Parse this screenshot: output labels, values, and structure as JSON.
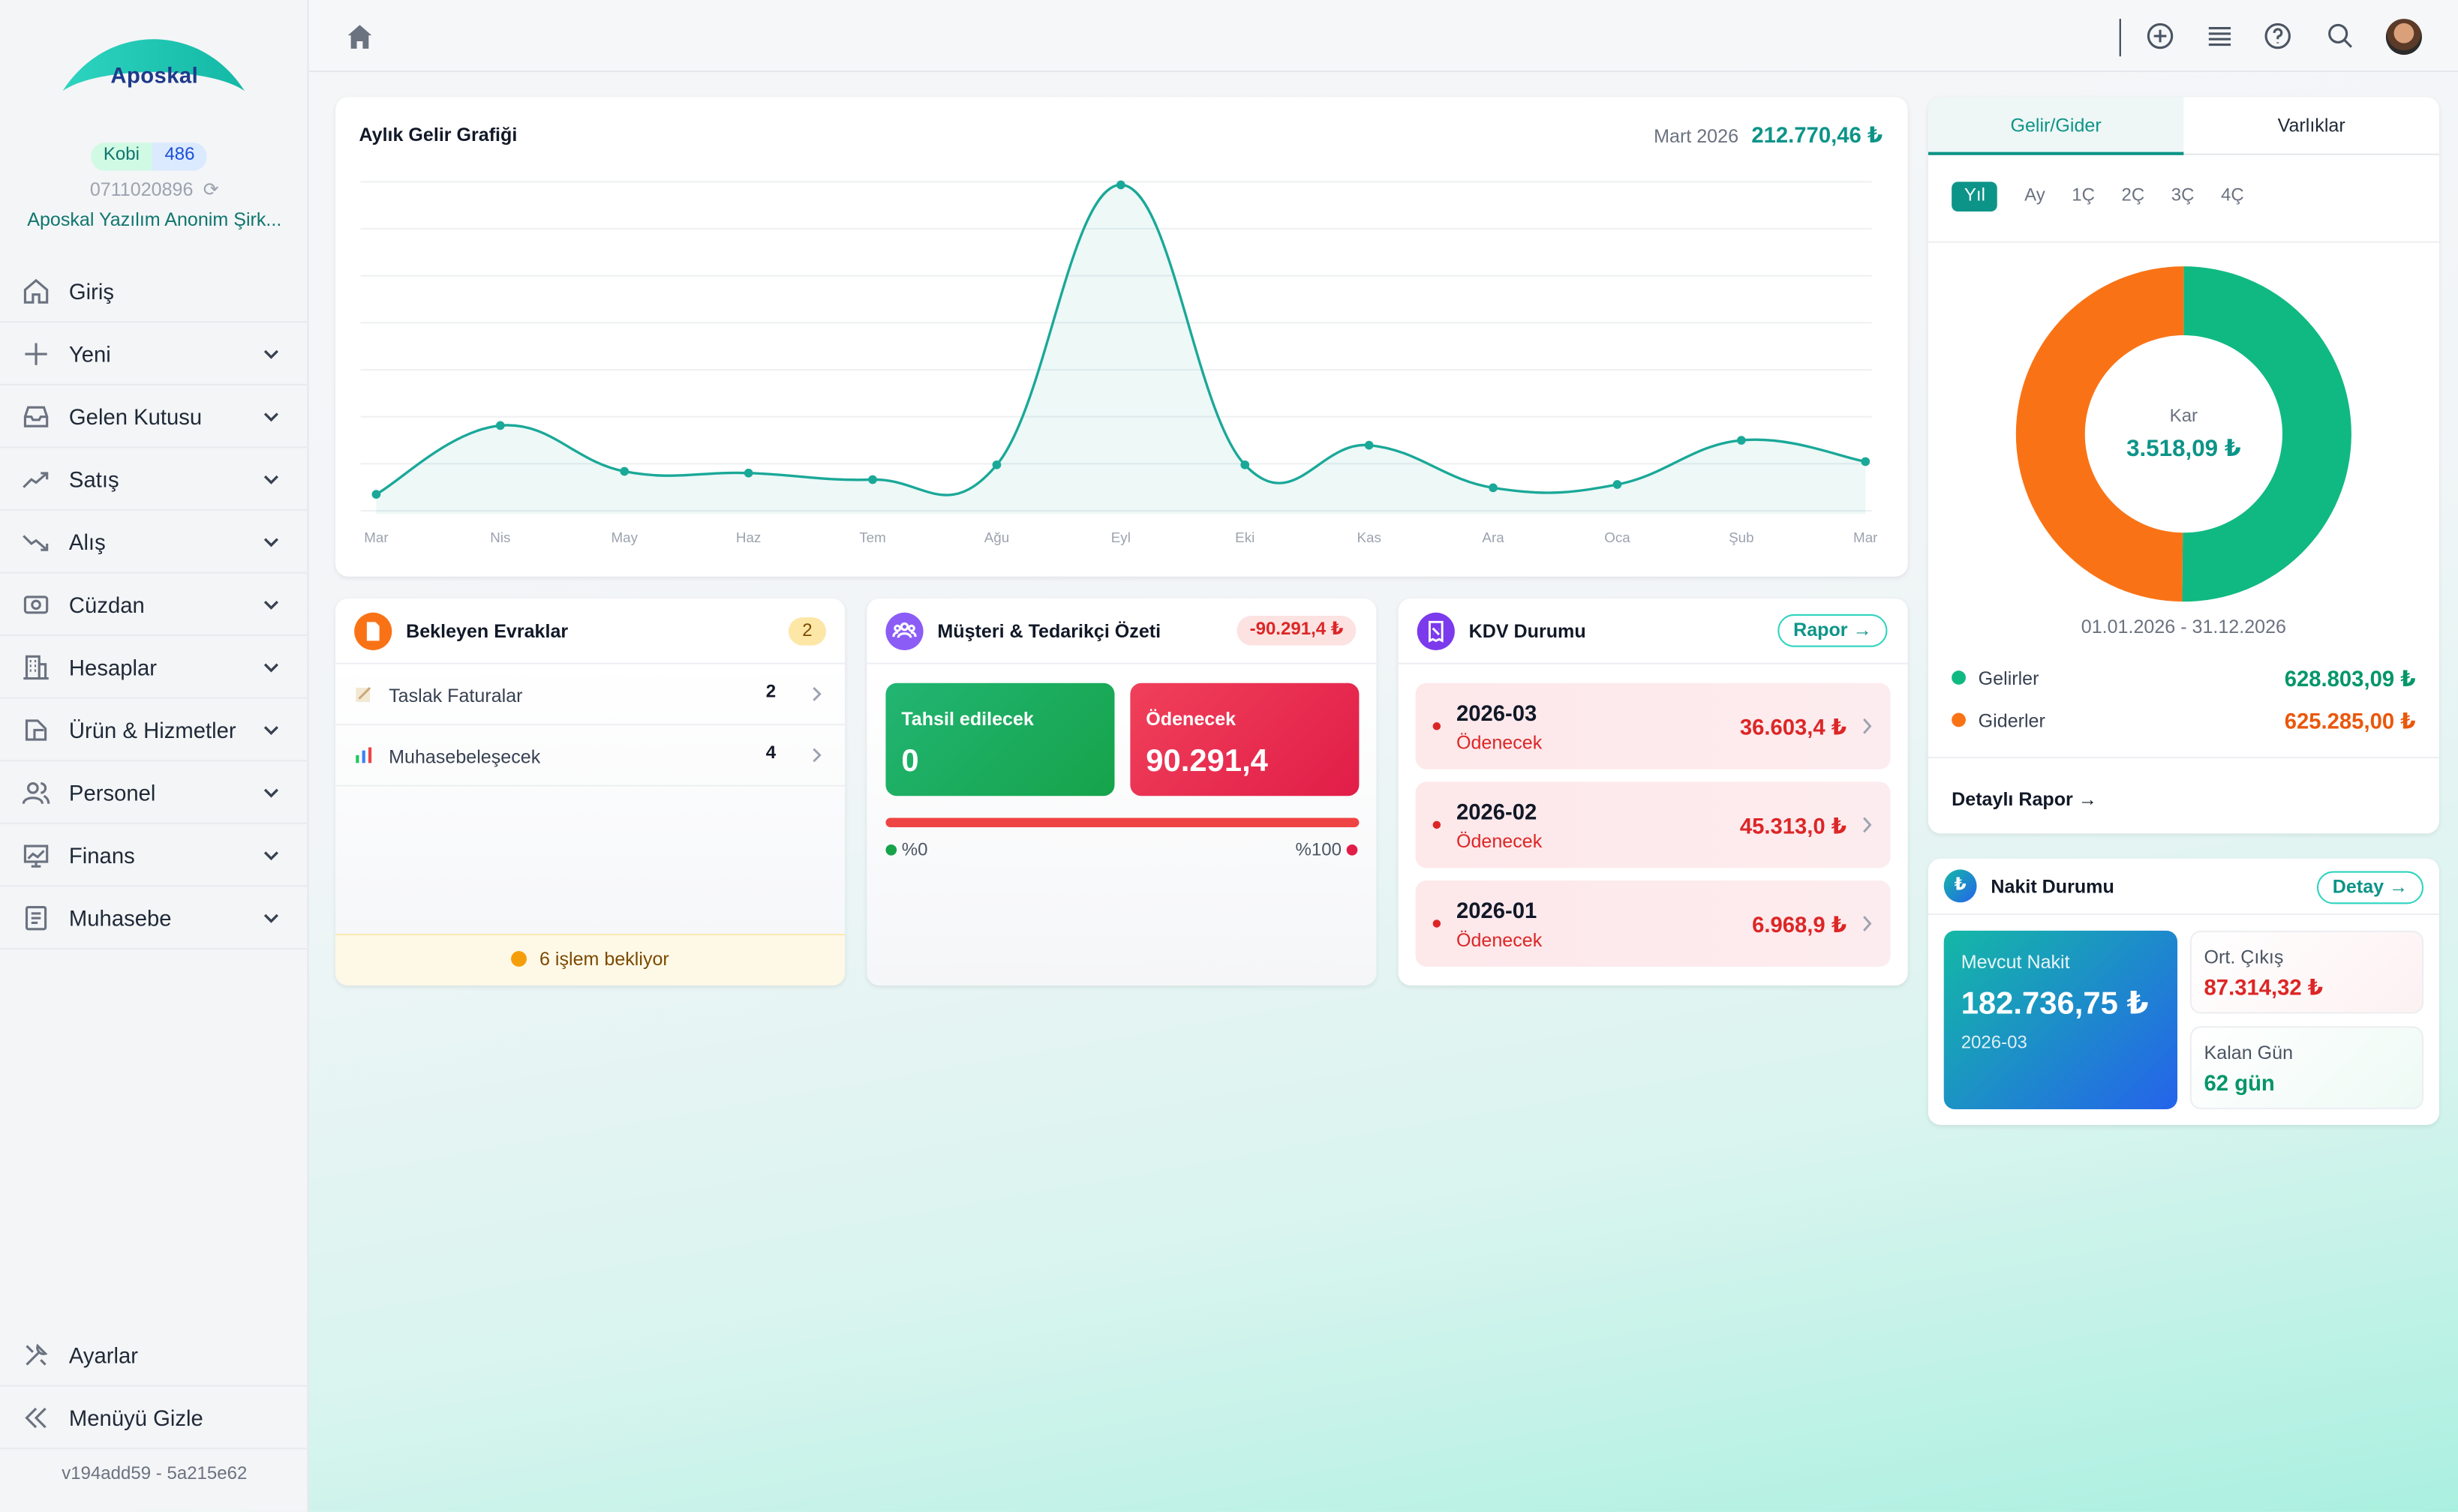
{
  "sidebar": {
    "logo_text": "Aposkal",
    "plan": "Kobi",
    "plan_count": "486",
    "phone": "0711020896",
    "company": "Aposkal Yazılım Anonim Şirk...",
    "items": [
      {
        "label": "Giriş",
        "icon": "home-icon"
      },
      {
        "label": "Yeni",
        "icon": "plus-icon"
      },
      {
        "label": "Gelen Kutusu",
        "icon": "inbox-icon"
      },
      {
        "label": "Satış",
        "icon": "trend-up-icon"
      },
      {
        "label": "Alış",
        "icon": "trend-down-icon"
      },
      {
        "label": "Cüzdan",
        "icon": "wallet-icon"
      },
      {
        "label": "Hesaplar",
        "icon": "building-icon"
      },
      {
        "label": "Ürün & Hizmetler",
        "icon": "box-icon"
      },
      {
        "label": "Personel",
        "icon": "users-icon"
      },
      {
        "label": "Finans",
        "icon": "finance-icon"
      },
      {
        "label": "Muhasebe",
        "icon": "ledger-icon"
      }
    ],
    "settings_label": "Ayarlar",
    "hide_menu_label": "Menüyü Gizle",
    "version": "v194add59 - 5a215e62"
  },
  "income_chart": {
    "title": "Aylık Gelir Grafiği",
    "period": "Mart 2026",
    "total": "212.770,46 ₺"
  },
  "chart_data": {
    "type": "area",
    "title": "Aylık Gelir Grafiği",
    "categories": [
      "Mar",
      "Nis",
      "May",
      "Haz",
      "Tem",
      "Ağu",
      "Eyl",
      "Eki",
      "Kas",
      "Ara",
      "Oca",
      "Şub",
      "Mar"
    ],
    "series": [
      {
        "name": "",
        "values": [
          0.055,
          0.265,
          0.125,
          0.12,
          0.1,
          0.145,
          1.0,
          0.145,
          0.205,
          0.075,
          0.085,
          0.22,
          0.155
        ]
      }
    ],
    "ylim": [
      0,
      1
    ],
    "grid": true,
    "color": "#1aa898"
  },
  "pending_docs": {
    "title": "Bekleyen Evraklar",
    "count": "2",
    "rows": [
      {
        "label": "Taslak Faturalar",
        "count": "2"
      },
      {
        "label": "Muhasebeleşecek",
        "count": "4"
      }
    ],
    "footer": "6 işlem bekliyor"
  },
  "customer_summary": {
    "title": "Müşteri & Tedarikçi Özeti",
    "balance": "-90.291,4 ₺",
    "receivable_label": "Tahsil edilecek",
    "receivable_value": "0",
    "payable_label": "Ödenecek",
    "payable_value": "90.291,4",
    "left_pct": "%0",
    "right_pct": "%100"
  },
  "vat": {
    "title": "KDV Durumu",
    "report_label": "Rapor →",
    "rows": [
      {
        "period": "2026-03",
        "state": "Ödenecek",
        "amount": "36.603,4 ₺"
      },
      {
        "period": "2026-02",
        "state": "Ödenecek",
        "amount": "45.313,0 ₺"
      },
      {
        "period": "2026-01",
        "state": "Ödenecek",
        "amount": "6.968,9 ₺"
      }
    ]
  },
  "income_expense": {
    "tabs": [
      "Gelir/Gider",
      "Varlıklar"
    ],
    "periods": [
      "Yıl",
      "Ay",
      "1Ç",
      "2Ç",
      "3Ç",
      "4Ç"
    ],
    "donut_label": "Kar",
    "donut_value": "3.518,09 ₺",
    "range": "01.01.2026 - 31.12.2026",
    "income_label": "Gelirler",
    "income_value": "628.803,09 ₺",
    "expense_label": "Giderler",
    "expense_value": "625.285,00 ₺",
    "income_share": 0.5014,
    "income_color": "#10b981",
    "expense_color": "#f97316",
    "detail_label": "Detaylı Rapor →"
  },
  "cash": {
    "title": "Nakit Durumu",
    "detail_label": "Detay →",
    "current_label": "Mevcut Nakit",
    "current_value": "182.736,75 ₺",
    "current_period": "2026-03",
    "avg_out_label": "Ort. Çıkış",
    "avg_out_value": "87.314,32 ₺",
    "days_left_label": "Kalan Gün",
    "days_left_value": "62 gün"
  }
}
